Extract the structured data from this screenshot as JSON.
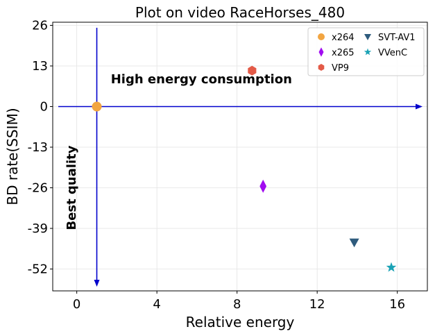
{
  "chart_data": {
    "type": "scatter",
    "title": "Plot on video RaceHorses_480",
    "xlabel": "Relative energy",
    "ylabel": "BD rate(SSIM)",
    "xlim": [
      -1.2,
      17.5
    ],
    "ylim": [
      -59,
      27
    ],
    "xticks": [
      0,
      4,
      8,
      12,
      16
    ],
    "yticks": [
      26,
      13,
      0,
      -13,
      -26,
      -39,
      -52
    ],
    "grid": true,
    "legend_position": "top-right",
    "series": [
      {
        "name": "x264",
        "marker": "circle",
        "color": "#f2a541",
        "points": [
          {
            "x": 1.0,
            "y": 0
          }
        ]
      },
      {
        "name": "x265",
        "marker": "diamond",
        "color": "#a10cf0",
        "points": [
          {
            "x": 9.3,
            "y": -25.5
          }
        ]
      },
      {
        "name": "VP9",
        "marker": "hexagon",
        "color": "#e35a47",
        "points": [
          {
            "x": 8.75,
            "y": 11.5
          }
        ]
      },
      {
        "name": "SVT-AV1",
        "marker": "triangle-down",
        "color": "#2e5b7d",
        "points": [
          {
            "x": 13.85,
            "y": -43.5
          }
        ]
      },
      {
        "name": "VVenC",
        "marker": "star",
        "color": "#1aa2b5",
        "points": [
          {
            "x": 15.7,
            "y": -51.5
          }
        ]
      }
    ],
    "reference_lines": {
      "color": "#0000cc",
      "x_at": 1.0,
      "y_at": 0
    },
    "annotations": [
      {
        "text": "High energy consumption",
        "x": 1.7,
        "y": 7.5,
        "rotation": 0
      },
      {
        "text": "Best quality",
        "x": -0.05,
        "y": -26,
        "rotation": -90
      }
    ]
  }
}
